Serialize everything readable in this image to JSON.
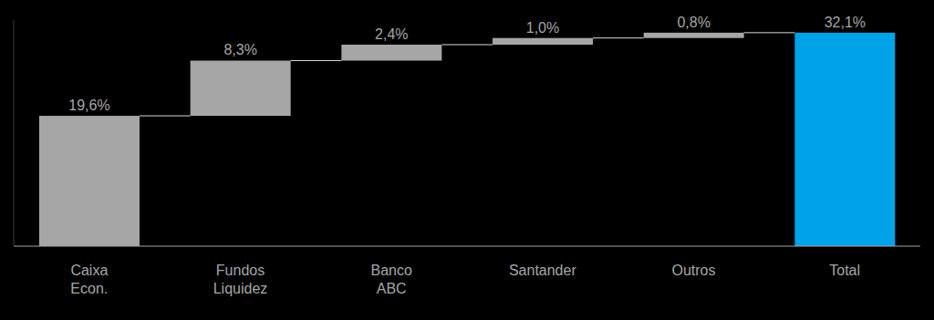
{
  "chart_data": {
    "type": "waterfall",
    "categories": [
      "Caixa Econ.",
      "Fundos Liquidez",
      "Banco ABC",
      "Santander",
      "Outros",
      "Total"
    ],
    "values": [
      19.6,
      8.3,
      2.4,
      1.0,
      0.8,
      32.1
    ],
    "value_labels": [
      "19,6%",
      "8,3%",
      "2,4%",
      "1,0%",
      "0,8%",
      "32,1%"
    ],
    "colors": [
      "#a6a6a6",
      "#a6a6a6",
      "#a6a6a6",
      "#a6a6a6",
      "#a6a6a6",
      "#00a2e8"
    ],
    "ylim": [
      0,
      34
    ],
    "data_labels": true,
    "tick_labels": "x",
    "grid": false
  }
}
